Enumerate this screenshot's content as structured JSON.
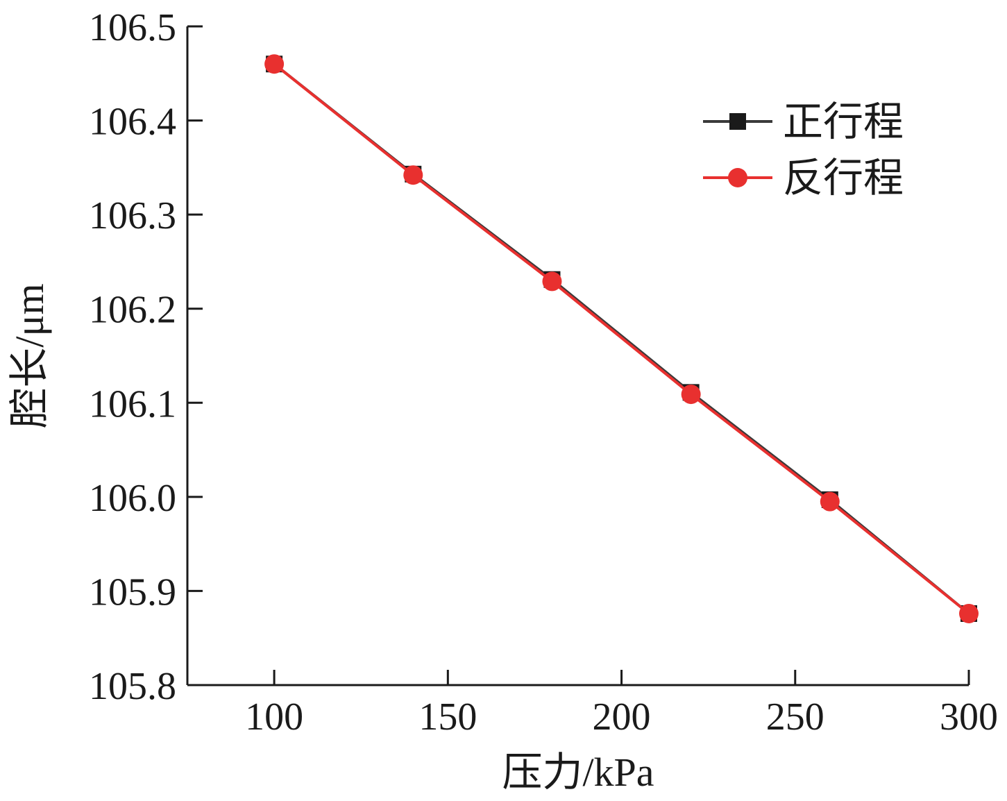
{
  "chart_data": {
    "type": "line",
    "title": "",
    "xlabel": "压力/kPa",
    "ylabel": "腔长/μm",
    "xlim": [
      75,
      300
    ],
    "ylim": [
      105.8,
      106.5
    ],
    "x_ticks": [
      100,
      150,
      200,
      250,
      300
    ],
    "y_ticks": [
      105.8,
      105.9,
      106.0,
      106.1,
      106.2,
      106.3,
      106.4,
      106.5
    ],
    "x_tick_labels": [
      "100",
      "150",
      "200",
      "250",
      "300"
    ],
    "y_tick_labels": [
      "105.8",
      "105.9",
      "106.0",
      "106.1",
      "106.2",
      "106.3",
      "106.4",
      "106.5"
    ],
    "grid": false,
    "legend_position": "top-right",
    "x": [
      100,
      140,
      180,
      220,
      260,
      300
    ],
    "series": [
      {
        "name": "正行程",
        "marker": "square",
        "color": "#1a1a1a",
        "line_color": "#3a3a3a",
        "values": [
          106.46,
          106.343,
          106.231,
          106.111,
          105.997,
          105.876
        ]
      },
      {
        "name": "反行程",
        "marker": "circle",
        "color": "#e8302f",
        "line_color": "#e8302f",
        "values": [
          106.46,
          106.342,
          106.229,
          106.109,
          105.995,
          105.876
        ]
      }
    ]
  }
}
